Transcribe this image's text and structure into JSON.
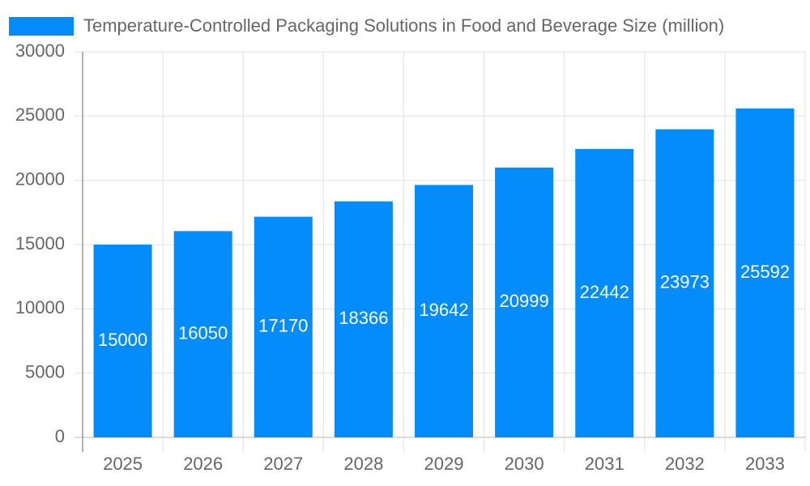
{
  "chart_data": {
    "type": "bar",
    "categories": [
      "2025",
      "2026",
      "2027",
      "2028",
      "2029",
      "2030",
      "2031",
      "2032",
      "2033"
    ],
    "series": [
      {
        "name": "Temperature-Controlled Packaging Solutions in Food and Beverage Size (million)",
        "color": "#048cfa",
        "values": [
          15000,
          16050,
          17170,
          18366,
          19642,
          20999,
          22442,
          23973,
          25592
        ]
      }
    ],
    "ylim": [
      0,
      30000
    ],
    "yticks": [
      0,
      5000,
      10000,
      15000,
      20000,
      25000,
      30000
    ],
    "grid": true,
    "legend": "top",
    "data_labels": true
  }
}
